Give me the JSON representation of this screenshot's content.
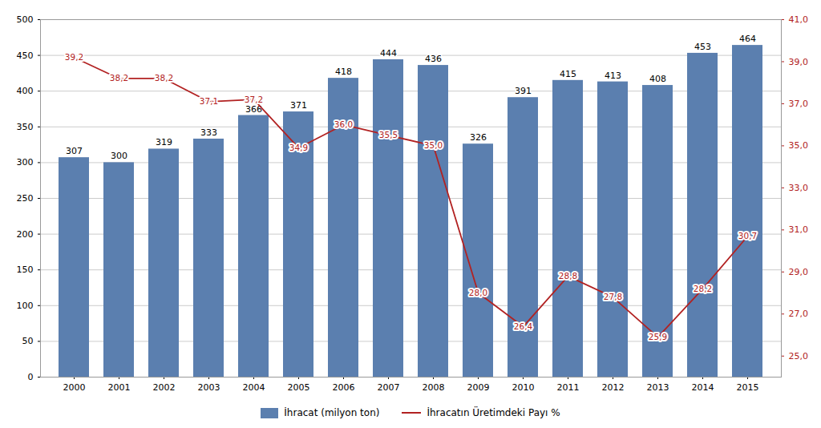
{
  "chart_data": {
    "type": "bar",
    "categories": [
      "2000",
      "2001",
      "2002",
      "2003",
      "2004",
      "2005",
      "2006",
      "2007",
      "2008",
      "2009",
      "2010",
      "2011",
      "2012",
      "2013",
      "2014",
      "2015"
    ],
    "series": [
      {
        "name": "İhracat (milyon ton)",
        "type": "bar",
        "color": "#5B7FAF",
        "values": [
          307,
          300,
          319,
          333,
          366,
          371,
          418,
          444,
          436,
          326,
          391,
          415,
          413,
          408,
          453,
          464
        ]
      },
      {
        "name": "İhracatın Üretimdeki Payı %",
        "type": "line",
        "axis": "y2",
        "color": "#B22222",
        "values": [
          39.2,
          38.2,
          38.2,
          37.1,
          37.2,
          34.9,
          36.0,
          35.5,
          35.0,
          28.0,
          26.4,
          28.8,
          27.8,
          25.9,
          28.2,
          30.7
        ],
        "value_labels": [
          "39,2",
          "38,2",
          "38,2",
          "37,1",
          "37,2",
          "34,9",
          "36,0",
          "35,5",
          "35,0",
          "28,0",
          "26,4",
          "28,8",
          "27,8",
          "25,9",
          "28,2",
          "30,7"
        ]
      }
    ],
    "ylim": [
      0,
      500
    ],
    "yticks": [
      0,
      50,
      100,
      150,
      200,
      250,
      300,
      350,
      400,
      450,
      500
    ],
    "y2lim": [
      24.0,
      41.0
    ],
    "y2ticks": [
      {
        "value": 25.0,
        "label": "25,0"
      },
      {
        "value": 27.0,
        "label": "27,0"
      },
      {
        "value": 29.0,
        "label": "29,0"
      },
      {
        "value": 31.0,
        "label": "31,0"
      },
      {
        "value": 33.0,
        "label": "33,0"
      },
      {
        "value": 35.0,
        "label": "35,0"
      },
      {
        "value": 37.0,
        "label": "37,0"
      },
      {
        "value": 39.0,
        "label": "39,0"
      },
      {
        "value": 41.0,
        "label": "41,0"
      }
    ],
    "grid": true,
    "legend": "bottom",
    "data_labels": true
  }
}
